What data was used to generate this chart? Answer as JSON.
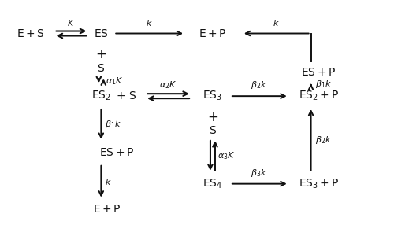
{
  "bg_color": "#ffffff",
  "text_color": "#111111",
  "font_size": 10,
  "label_font_size": 8
}
